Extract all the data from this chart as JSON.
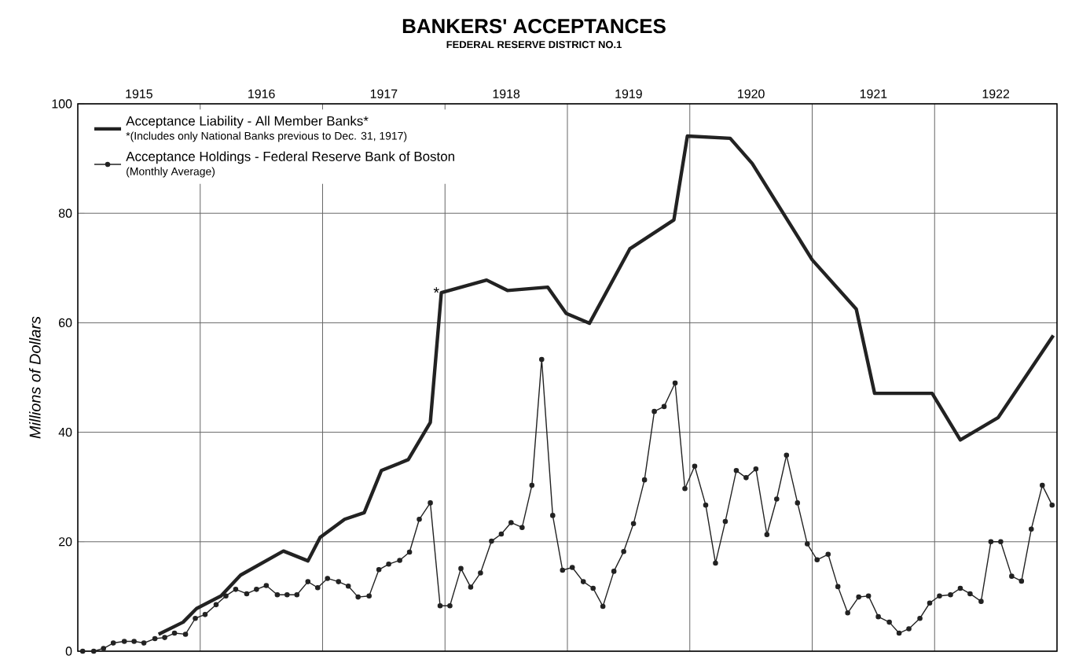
{
  "chart_data": {
    "type": "line",
    "title": "BANKERS' ACCEPTANCES",
    "subtitle": "FEDERAL RESERVE DISTRICT NO.1",
    "ylabel": "Millions of Dollars",
    "xlim": [
      1915,
      1923
    ],
    "ylim": [
      0,
      100
    ],
    "xticks": [
      {
        "value": 1915.5,
        "label": "1915"
      },
      {
        "value": 1916.5,
        "label": "1916"
      },
      {
        "value": 1917.5,
        "label": "1917"
      },
      {
        "value": 1918.5,
        "label": "1918"
      },
      {
        "value": 1919.5,
        "label": "1919"
      },
      {
        "value": 1920.5,
        "label": "1920"
      },
      {
        "value": 1921.5,
        "label": "1921"
      },
      {
        "value": 1922.5,
        "label": "1922"
      },
      {
        "value": 1916,
        "label": null
      },
      {
        "value": 1917,
        "label": null
      },
      {
        "value": 1918,
        "label": null
      },
      {
        "value": 1919,
        "label": null
      },
      {
        "value": 1920,
        "label": null
      },
      {
        "value": 1921,
        "label": null
      },
      {
        "value": 1922,
        "label": null
      }
    ],
    "yticks": [
      0,
      20,
      40,
      60,
      80,
      100
    ],
    "grid": true,
    "legend": "top left",
    "annotations": [
      "*(Includes only National Banks previous to Dec. 31, 1917)",
      "(Monthly Average)",
      {
        "text": "*",
        "x": 1917.97,
        "y": 65.5
      }
    ],
    "series": [
      {
        "name": "Acceptance Liability - All Member Banks*",
        "color": "#222222",
        "marker": "none",
        "x": [
          1915.66,
          1915.86,
          1915.97,
          1916.17,
          1916.33,
          1916.68,
          1916.88,
          1916.98,
          1917.18,
          1917.34,
          1917.48,
          1917.7,
          1917.88,
          1917.97,
          1918.34,
          1918.51,
          1918.84,
          1918.99,
          1919.18,
          1919.51,
          1919.87,
          1919.98,
          1920.33,
          1920.51,
          1921.0,
          1921.36,
          1921.51,
          1921.98,
          1922.21,
          1922.52,
          1922.97
        ],
        "values": [
          3.1,
          5.3,
          7.8,
          10.1,
          13.9,
          18.3,
          16.5,
          20.8,
          24.1,
          25.3,
          33,
          35,
          41.8,
          65.5,
          67.8,
          65.9,
          66.5,
          61.7,
          59.9,
          73.5,
          78.8,
          94.1,
          93.7,
          89.1,
          71.5,
          62.5,
          47.1,
          47.1,
          38.6,
          42.7,
          57.7
        ]
      },
      {
        "name": "Acceptance Holdings - Federal Reserve Bank of Boston",
        "color": "#222222",
        "marker": "circle",
        "x": [
          1915.04,
          1915.13,
          1915.21,
          1915.29,
          1915.38,
          1915.46,
          1915.54,
          1915.63,
          1915.71,
          1915.79,
          1915.88,
          1915.96,
          1916.04,
          1916.13,
          1916.21,
          1916.29,
          1916.38,
          1916.46,
          1916.54,
          1916.63,
          1916.71,
          1916.79,
          1916.88,
          1916.96,
          1917.04,
          1917.13,
          1917.21,
          1917.29,
          1917.38,
          1917.46,
          1917.54,
          1917.63,
          1917.71,
          1917.79,
          1917.88,
          1917.96,
          1918.04,
          1918.13,
          1918.21,
          1918.29,
          1918.38,
          1918.46,
          1918.54,
          1918.63,
          1918.71,
          1918.79,
          1918.88,
          1918.96,
          1919.04,
          1919.13,
          1919.21,
          1919.29,
          1919.38,
          1919.46,
          1919.54,
          1919.63,
          1919.71,
          1919.79,
          1919.88,
          1919.96,
          1920.04,
          1920.13,
          1920.21,
          1920.29,
          1920.38,
          1920.46,
          1920.54,
          1920.63,
          1920.71,
          1920.79,
          1920.88,
          1920.96,
          1921.04,
          1921.13,
          1921.21,
          1921.29,
          1921.38,
          1921.46,
          1921.54,
          1921.63,
          1921.71,
          1921.79,
          1921.88,
          1921.96,
          1922.04,
          1922.13,
          1922.21,
          1922.29,
          1922.38,
          1922.46,
          1922.54,
          1922.63,
          1922.71,
          1922.79,
          1922.88,
          1922.96
        ],
        "values": [
          0,
          0,
          0.5,
          1.5,
          1.8,
          1.8,
          1.5,
          2.3,
          2.5,
          3.3,
          3.1,
          6,
          6.7,
          8.5,
          10.1,
          11.3,
          10.5,
          11.3,
          12,
          10.3,
          10.3,
          10.3,
          12.7,
          11.6,
          13.3,
          12.7,
          11.9,
          9.9,
          10.1,
          14.9,
          15.9,
          16.6,
          18.1,
          24.1,
          27.1,
          8.3,
          8.3,
          15.1,
          11.7,
          14.3,
          20.1,
          21.4,
          23.5,
          22.6,
          30.3,
          53.3,
          24.8,
          14.8,
          15.3,
          12.7,
          11.5,
          8.2,
          14.6,
          18.2,
          23.3,
          31.3,
          43.8,
          44.7,
          49,
          29.7,
          33.8,
          26.7,
          16.1,
          23.7,
          33,
          31.7,
          33.3,
          21.3,
          27.8,
          35.8,
          27.1,
          19.6,
          16.7,
          17.7,
          11.8,
          7,
          9.9,
          10.1,
          6.3,
          5.3,
          3.3,
          4.1,
          6,
          8.8,
          10.1,
          10.3,
          11.5,
          10.5,
          9.1,
          20,
          20,
          13.7,
          12.8,
          22.3,
          30.3,
          26.7
        ]
      }
    ]
  }
}
